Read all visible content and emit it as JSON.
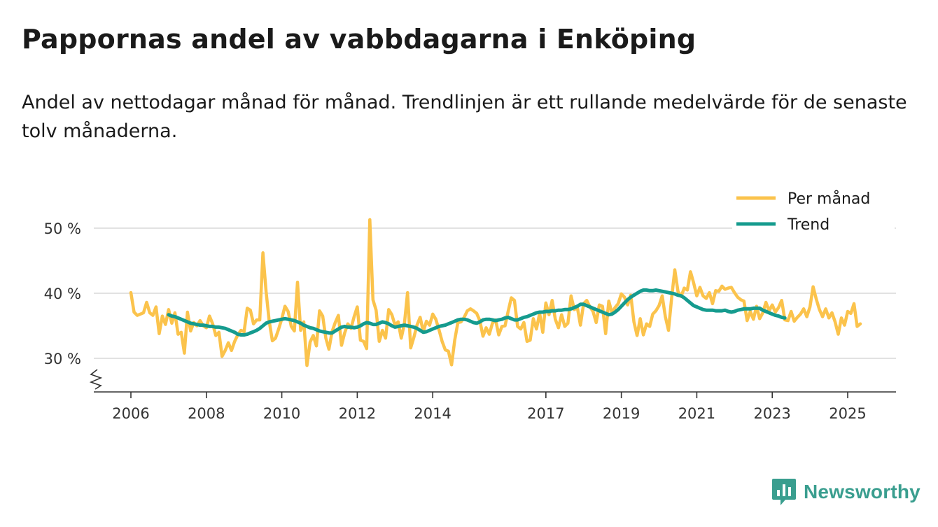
{
  "title": "Pappornas andel av vabbdagarna i Enköping",
  "subtitle": "Andel av nettodagar månad för månad. Trendlinjen är ett rullande medelvärde för de senaste tolv månaderna.",
  "brand": "Newsworthy",
  "colors": {
    "monthly": "#fbc34c",
    "trend": "#159b8e",
    "grid": "#d9d9d9",
    "axis": "#333333",
    "brand": "#3a9e8f"
  },
  "chart_data": {
    "type": "line",
    "title": "Pappornas andel av vabbdagarna i Enköping",
    "xlabel": "",
    "ylabel": "",
    "unit": "%",
    "xlim": [
      2006.0,
      2026.3
    ],
    "ylim": [
      24.5,
      50
    ],
    "y_ticks": [
      30,
      40,
      50
    ],
    "y_tick_labels": [
      "30 %",
      "40 %",
      "50 %"
    ],
    "x_ticks": [
      2006,
      2008,
      2010,
      2012,
      2014,
      2017,
      2019,
      2021,
      2023,
      2025
    ],
    "x_tick_labels": [
      "2006",
      "2008",
      "2010",
      "2012",
      "2014",
      "2017",
      "2019",
      "2021",
      "2023",
      "2025"
    ],
    "axis_break": true,
    "legend": {
      "position": "top-right",
      "entries": [
        "Per månad",
        "Trend"
      ]
    },
    "series": [
      {
        "name": "Per månad",
        "start": 2006.0,
        "step_months": 1,
        "values": [
          40.1,
          37.1,
          36.6,
          36.8,
          37.0,
          38.6,
          37.0,
          36.6,
          37.9,
          33.8,
          36.5,
          35.2,
          37.5,
          35.4,
          37.0,
          33.7,
          34.0,
          30.8,
          37.1,
          34.2,
          35.5,
          35.0,
          35.8,
          35.0,
          34.7,
          36.5,
          35.3,
          33.5,
          34.0,
          30.3,
          31.2,
          32.4,
          31.2,
          32.6,
          33.6,
          34.3,
          34.1,
          37.7,
          37.4,
          35.3,
          35.9,
          35.9,
          46.2,
          40.3,
          35.7,
          32.7,
          33.1,
          34.5,
          36.1,
          38.0,
          37.2,
          34.9,
          34.2,
          41.7,
          34.3,
          35.6,
          28.9,
          32.5,
          33.5,
          31.9,
          37.3,
          36.5,
          33.1,
          31.4,
          34.1,
          35.5,
          36.6,
          32.0,
          33.9,
          35.3,
          34.6,
          36.4,
          37.9,
          32.8,
          32.6,
          31.5,
          51.3,
          39.0,
          37.4,
          32.6,
          34.3,
          33.1,
          37.5,
          36.7,
          35.1,
          35.6,
          33.1,
          35.3,
          40.1,
          31.6,
          33.2,
          35.1,
          36.3,
          34.1,
          35.7,
          35.1,
          36.8,
          36.0,
          34.4,
          32.6,
          31.3,
          31.1,
          29.0,
          32.8,
          35.5,
          35.6,
          36.3,
          37.3,
          37.6,
          37.3,
          36.9,
          35.8,
          33.4,
          34.7,
          33.7,
          35.4,
          35.9,
          33.6,
          34.9,
          35.0,
          37.2,
          39.3,
          38.9,
          34.9,
          34.5,
          35.5,
          32.6,
          32.8,
          36.1,
          34.5,
          36.9,
          34.0,
          38.5,
          36.7,
          38.9,
          36.0,
          34.7,
          36.7,
          34.9,
          35.4,
          39.6,
          37.5,
          37.8,
          35.1,
          38.4,
          38.9,
          37.9,
          37.2,
          35.5,
          38.2,
          38.0,
          33.8,
          38.8,
          37.0,
          37.8,
          38.4,
          39.9,
          39.4,
          38.2,
          39.7,
          35.6,
          33.5,
          36.1,
          33.6,
          35.3,
          34.9,
          36.8,
          37.3,
          38.1,
          39.6,
          36.4,
          34.3,
          39.3,
          43.6,
          40.3,
          39.5,
          40.8,
          40.5,
          43.3,
          41.6,
          39.6,
          40.9,
          39.6,
          39.2,
          40.1,
          38.4,
          40.4,
          40.3,
          41.1,
          40.6,
          40.8,
          40.9,
          40.1,
          39.4,
          39.0,
          38.8,
          35.8,
          37.2,
          36.0,
          38.0,
          36.1,
          37.0,
          38.6,
          37.3,
          38.2,
          37.1,
          37.8,
          38.9,
          35.9,
          35.8,
          37.2,
          35.7,
          36.3,
          36.8,
          37.6,
          36.4,
          37.9,
          41.0,
          39.1,
          37.5,
          36.4,
          37.6,
          36.2,
          37.0,
          35.6,
          33.7,
          36.2,
          35.1,
          37.2,
          36.9,
          38.4,
          34.9,
          35.3
        ]
      },
      {
        "name": "Trend",
        "start": 2007.0,
        "step_months": 1,
        "values": [
          36.7,
          36.5,
          36.4,
          36.2,
          36.0,
          35.8,
          35.6,
          35.4,
          35.3,
          35.2,
          35.1,
          35.1,
          35.0,
          34.9,
          34.9,
          34.8,
          34.8,
          34.7,
          34.6,
          34.4,
          34.2,
          34.0,
          33.7,
          33.6,
          33.6,
          33.7,
          33.9,
          34.1,
          34.3,
          34.6,
          35.0,
          35.4,
          35.6,
          35.7,
          35.8,
          35.9,
          36.0,
          36.1,
          36.0,
          35.9,
          35.8,
          35.6,
          35.4,
          35.1,
          34.9,
          34.7,
          34.6,
          34.4,
          34.2,
          34.1,
          34.0,
          33.9,
          33.9,
          34.2,
          34.5,
          34.8,
          34.9,
          34.8,
          34.8,
          34.7,
          34.8,
          35.0,
          35.3,
          35.5,
          35.4,
          35.2,
          35.2,
          35.4,
          35.6,
          35.5,
          35.3,
          35.0,
          34.8,
          34.9,
          35.0,
          35.1,
          35.0,
          34.9,
          34.8,
          34.6,
          34.3,
          34.0,
          34.1,
          34.3,
          34.5,
          34.7,
          34.9,
          35.0,
          35.1,
          35.3,
          35.5,
          35.7,
          35.9,
          36.0,
          36.0,
          35.9,
          35.7,
          35.5,
          35.4,
          35.6,
          35.9,
          36.0,
          36.0,
          35.9,
          35.8,
          35.9,
          36.0,
          36.2,
          36.3,
          36.1,
          35.9,
          35.9,
          36.1,
          36.3,
          36.4,
          36.6,
          36.8,
          37.0,
          37.1,
          37.1,
          37.2,
          37.2,
          37.3,
          37.3,
          37.4,
          37.4,
          37.5,
          37.5,
          37.6,
          37.8,
          38.0,
          38.3,
          38.3,
          38.1,
          37.9,
          37.7,
          37.5,
          37.3,
          37.1,
          36.9,
          36.7,
          36.8,
          37.1,
          37.5,
          38.0,
          38.5,
          39.0,
          39.4,
          39.7,
          40.0,
          40.3,
          40.5,
          40.5,
          40.4,
          40.4,
          40.5,
          40.4,
          40.3,
          40.2,
          40.1,
          40.0,
          39.9,
          39.7,
          39.6,
          39.3,
          38.9,
          38.5,
          38.1,
          37.9,
          37.7,
          37.5,
          37.4,
          37.4,
          37.4,
          37.3,
          37.3,
          37.3,
          37.4,
          37.2,
          37.1,
          37.2,
          37.4,
          37.5,
          37.6,
          37.6,
          37.6,
          37.7,
          37.7,
          37.7,
          37.4,
          37.2,
          37.0,
          36.8,
          36.6,
          36.5,
          36.3,
          36.2
        ]
      }
    ]
  }
}
